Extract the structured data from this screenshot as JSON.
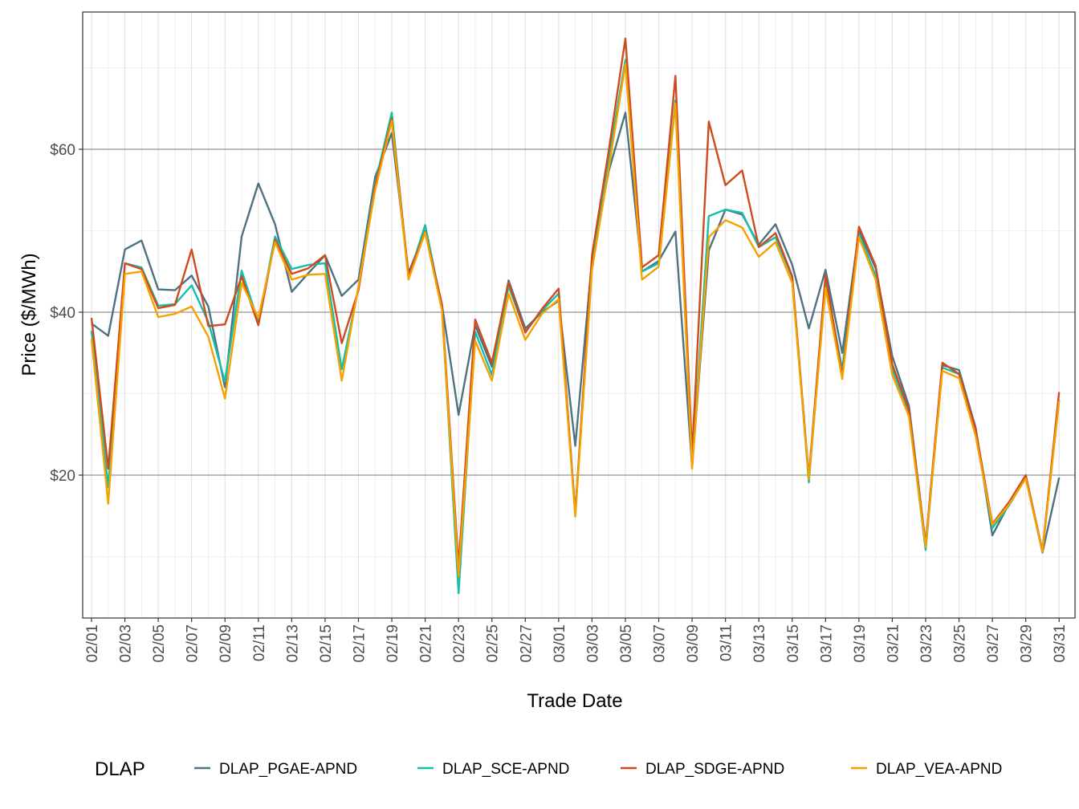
{
  "chart_data": {
    "type": "line",
    "title": "",
    "xlabel": "Trade Date",
    "ylabel": "Price ($/MWh)",
    "ylim": [
      2.5,
      75
    ],
    "y_ticks": [
      20,
      40,
      60
    ],
    "y_tick_labels": [
      "$20",
      "$40",
      "$60"
    ],
    "x_tick_labels": [
      "02/01",
      "02/03",
      "02/05",
      "02/07",
      "02/09",
      "02/11",
      "02/13",
      "02/15",
      "02/17",
      "02/19",
      "02/21",
      "02/23",
      "02/25",
      "02/27",
      "03/01",
      "03/03",
      "03/05",
      "03/07",
      "03/09",
      "03/11",
      "03/13",
      "03/15",
      "03/17",
      "03/19",
      "03/21",
      "03/23",
      "03/25",
      "03/27",
      "03/29",
      "03/31"
    ],
    "x": [
      "02/01",
      "02/02",
      "02/03",
      "02/04",
      "02/05",
      "02/06",
      "02/07",
      "02/08",
      "02/09",
      "02/10",
      "02/11",
      "02/12",
      "02/13",
      "02/14",
      "02/15",
      "02/16",
      "02/17",
      "02/18",
      "02/19",
      "02/20",
      "02/21",
      "02/22",
      "02/23",
      "02/24",
      "02/25",
      "02/26",
      "02/27",
      "02/28",
      "02/29",
      "03/01",
      "03/02",
      "03/03",
      "03/04",
      "03/05",
      "03/06",
      "03/07",
      "03/08",
      "03/09",
      "03/10",
      "03/11",
      "03/12",
      "03/13",
      "03/14",
      "03/15",
      "03/16",
      "03/17",
      "03/18",
      "03/19",
      "03/20",
      "03/21",
      "03/22",
      "03/23",
      "03/24",
      "03/25",
      "03/26",
      "03/27",
      "03/28",
      "03/29",
      "03/30",
      "03/31"
    ],
    "grid": true,
    "legend": {
      "title": "DLAP",
      "position": "bottom"
    },
    "series": [
      {
        "name": "DLAP_PGAE-APND",
        "color": "#4d7284",
        "values": [
          38.6,
          37.1,
          47.7,
          48.8,
          42.8,
          42.7,
          44.5,
          40.7,
          30.8,
          49.3,
          55.8,
          50.8,
          42.5,
          44.8,
          47.0,
          42.0,
          44.0,
          56.6,
          62.0,
          44.8,
          50.0,
          41.0,
          27.4,
          38.4,
          33.3,
          43.9,
          38.0,
          40.0,
          41.4,
          23.6,
          46.5,
          57.3,
          64.5,
          45.0,
          46.3,
          49.9,
          21.0,
          47.6,
          52.6,
          52.0,
          48.3,
          50.8,
          45.8,
          38.0,
          45.2,
          35.0,
          50.0,
          45.4,
          34.6,
          28.5,
          11.5,
          33.5,
          32.9,
          25.8,
          12.6,
          16.5,
          19.7,
          10.5,
          19.7,
          null
        ]
      },
      {
        "name": "DLAP_SCE-APND",
        "color": "#16bfa8",
        "values": [
          37.7,
          18.5,
          46.0,
          45.5,
          40.8,
          41.0,
          43.3,
          38.8,
          31.5,
          45.1,
          38.8,
          49.3,
          45.3,
          45.8,
          46.0,
          33.0,
          43.0,
          55.8,
          64.5,
          44.3,
          50.7,
          40.7,
          5.5,
          37.6,
          32.3,
          43.2,
          37.6,
          40.2,
          42.3,
          15.4,
          46.2,
          58.8,
          71.0,
          45.0,
          46.0,
          66.0,
          21.0,
          51.8,
          52.6,
          52.2,
          48.0,
          49.2,
          44.3,
          19.1,
          43.8,
          33.0,
          49.6,
          44.5,
          33.0,
          27.6,
          10.8,
          33.2,
          32.4,
          25.2,
          13.5,
          16.3,
          19.7,
          10.7,
          29.2,
          null
        ]
      },
      {
        "name": "DLAP_SDGE-APND",
        "color": "#cf4a1f",
        "values": [
          39.3,
          20.8,
          46.0,
          45.3,
          40.5,
          40.9,
          47.7,
          38.3,
          38.5,
          44.4,
          38.4,
          48.9,
          44.7,
          45.4,
          47.0,
          36.2,
          42.7,
          55.5,
          63.8,
          44.6,
          49.9,
          41.0,
          8.8,
          39.1,
          33.8,
          43.7,
          37.5,
          40.4,
          42.9,
          15.2,
          47.0,
          59.8,
          73.6,
          45.5,
          47.0,
          69.0,
          22.6,
          63.4,
          55.6,
          57.4,
          48.0,
          49.7,
          44.4,
          19.8,
          44.6,
          32.2,
          50.5,
          45.7,
          33.6,
          28.0,
          11.5,
          33.8,
          32.4,
          25.6,
          14.0,
          16.7,
          20.0,
          10.7,
          30.2,
          null
        ]
      },
      {
        "name": "DLAP_VEA-APND",
        "color": "#f5a200",
        "values": [
          36.7,
          16.5,
          44.7,
          45.0,
          39.4,
          39.8,
          40.7,
          37.0,
          29.4,
          43.6,
          39.3,
          48.6,
          44.0,
          44.6,
          44.7,
          31.6,
          43.2,
          55.0,
          63.5,
          44.0,
          49.8,
          40.3,
          7.6,
          36.5,
          31.6,
          42.3,
          36.6,
          39.8,
          41.6,
          14.9,
          45.2,
          57.6,
          70.5,
          44.0,
          45.6,
          65.6,
          20.8,
          49.2,
          51.3,
          50.4,
          46.8,
          48.6,
          43.6,
          19.5,
          43.0,
          31.8,
          49.2,
          44.0,
          32.3,
          27.2,
          11.2,
          32.8,
          31.9,
          24.8,
          13.9,
          16.4,
          19.6,
          10.6,
          29.1,
          null
        ]
      }
    ]
  }
}
